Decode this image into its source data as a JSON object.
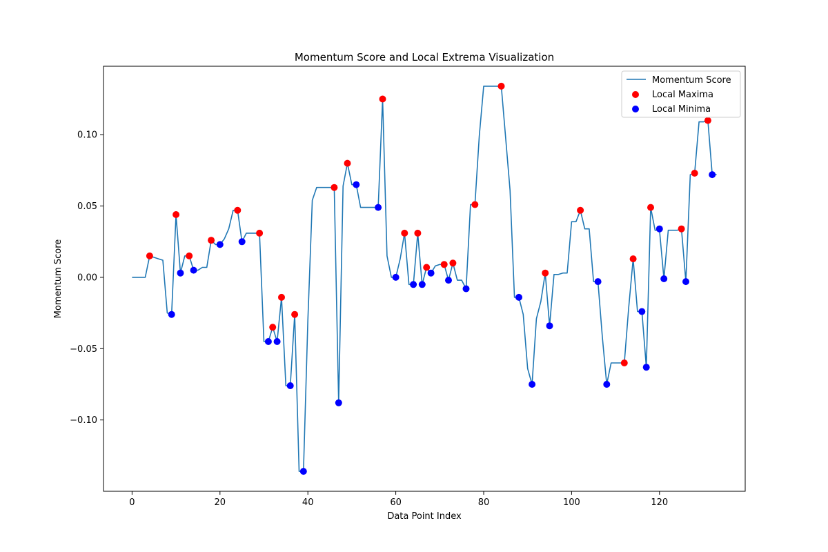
{
  "chart_data": {
    "type": "line",
    "title": "Momentum Score and Local Extrema Visualization",
    "xlabel": "Data Point Index",
    "ylabel": "Momentum Score",
    "xlim": [
      -6.5,
      139.5
    ],
    "ylim": [
      -0.15,
      0.148
    ],
    "xticks": [
      0,
      20,
      40,
      60,
      80,
      100,
      120
    ],
    "yticks": [
      -0.1,
      -0.05,
      0.0,
      0.05,
      0.1
    ],
    "xtick_labels": [
      "0",
      "20",
      "40",
      "60",
      "80",
      "100",
      "120"
    ],
    "ytick_labels": [
      "−0.10",
      "−0.05",
      "0.00",
      "0.05",
      "0.10"
    ],
    "grid": false,
    "legend_position": "top-right",
    "legend": [
      {
        "label": "Momentum Score",
        "kind": "line",
        "color": "#1f77b4"
      },
      {
        "label": "Local Maxima",
        "kind": "marker",
        "color": "#ff0000"
      },
      {
        "label": "Local Minima",
        "kind": "marker",
        "color": "#0000ff"
      }
    ],
    "series": [
      {
        "name": "Momentum Score",
        "type": "line",
        "color": "#1f77b4",
        "x": [
          0,
          1,
          2,
          3,
          4,
          5,
          6,
          7,
          8,
          9,
          10,
          11,
          12,
          13,
          14,
          15,
          16,
          17,
          18,
          19,
          20,
          21,
          22,
          23,
          24,
          25,
          26,
          27,
          28,
          29,
          30,
          31,
          32,
          33,
          34,
          35,
          36,
          37,
          38,
          39,
          40,
          41,
          42,
          43,
          44,
          45,
          46,
          47,
          48,
          49,
          50,
          51,
          52,
          53,
          54,
          55,
          56,
          57,
          58,
          59,
          60,
          61,
          62,
          63,
          64,
          65,
          66,
          67,
          68,
          69,
          70,
          71,
          72,
          73,
          74,
          75,
          76,
          77,
          78,
          79,
          80,
          81,
          82,
          83,
          84,
          85,
          86,
          87,
          88,
          89,
          90,
          91,
          92,
          93,
          94,
          95,
          96,
          97,
          98,
          99,
          100,
          101,
          102,
          103,
          104,
          105,
          106,
          107,
          108,
          109,
          110,
          111,
          112,
          113,
          114,
          115,
          116,
          117,
          118,
          119,
          120,
          121,
          122,
          123,
          124,
          125,
          126,
          127,
          128,
          129,
          130,
          131,
          132,
          133
        ],
        "y": [
          0,
          0,
          0,
          0,
          0.015,
          0.014,
          0.013,
          0.012,
          -0.025,
          -0.026,
          0.044,
          0.003,
          0.015,
          0.015,
          0.005,
          0.005,
          0.007,
          0.007,
          0.026,
          0.023,
          0.023,
          0.027,
          0.034,
          0.047,
          0.047,
          0.025,
          0.031,
          0.031,
          0.031,
          0.031,
          -0.045,
          -0.045,
          -0.035,
          -0.045,
          -0.014,
          -0.076,
          -0.076,
          -0.026,
          -0.136,
          -0.136,
          -0.03,
          0.054,
          0.063,
          0.063,
          0.063,
          0.063,
          0.063,
          -0.088,
          0.064,
          0.08,
          0.065,
          0.065,
          0.049,
          0.049,
          0.049,
          0.049,
          0.049,
          0.125,
          0.015,
          0.0,
          0.0,
          0.013,
          0.031,
          -0.005,
          -0.005,
          0.031,
          -0.005,
          0.007,
          0.003,
          0.008,
          0.009,
          0.009,
          -0.002,
          0.01,
          -0.002,
          -0.002,
          -0.008,
          0.051,
          0.051,
          0.099,
          0.134,
          0.134,
          0.134,
          0.134,
          0.134,
          0.098,
          0.061,
          -0.014,
          -0.014,
          -0.026,
          -0.064,
          -0.075,
          -0.029,
          -0.017,
          0.003,
          -0.034,
          0.002,
          0.002,
          0.003,
          0.003,
          0.039,
          0.039,
          0.047,
          0.034,
          0.034,
          -0.003,
          -0.003,
          -0.042,
          -0.075,
          -0.06,
          -0.06,
          -0.06,
          -0.06,
          -0.021,
          0.013,
          -0.024,
          -0.024,
          -0.063,
          0.049,
          0.033,
          0.033,
          -0.001,
          0.033,
          0.033,
          0.033,
          0.034,
          -0.003,
          0.072,
          0.073,
          0.109,
          0.109,
          0.11,
          0.072,
          0.072
        ]
      },
      {
        "name": "Local Maxima",
        "type": "scatter",
        "color": "#ff0000",
        "x": [
          4,
          10,
          13,
          18,
          24,
          29,
          32,
          34,
          37,
          46,
          49,
          57,
          62,
          65,
          67,
          71,
          73,
          78,
          84,
          94,
          102,
          112,
          114,
          118,
          125,
          128,
          131
        ],
        "y": [
          0.015,
          0.044,
          0.015,
          0.026,
          0.047,
          0.031,
          -0.035,
          -0.014,
          -0.026,
          0.063,
          0.08,
          0.125,
          0.031,
          0.031,
          0.007,
          0.009,
          0.01,
          0.051,
          0.134,
          0.003,
          0.047,
          -0.06,
          0.013,
          0.049,
          0.034,
          0.073,
          0.11
        ]
      },
      {
        "name": "Local Minima",
        "type": "scatter",
        "color": "#0000ff",
        "x": [
          9,
          11,
          14,
          20,
          25,
          31,
          33,
          36,
          39,
          47,
          51,
          56,
          60,
          64,
          66,
          68,
          72,
          76,
          88,
          91,
          95,
          106,
          108,
          116,
          117,
          120,
          121,
          126,
          132
        ],
        "y": [
          -0.026,
          0.003,
          0.005,
          0.023,
          0.025,
          -0.045,
          -0.045,
          -0.076,
          -0.136,
          -0.088,
          0.065,
          0.049,
          0.0,
          -0.005,
          -0.005,
          0.003,
          -0.002,
          -0.008,
          -0.014,
          -0.075,
          -0.034,
          -0.003,
          -0.075,
          -0.024,
          -0.063,
          0.034,
          -0.001,
          -0.003,
          0.072
        ]
      }
    ]
  }
}
